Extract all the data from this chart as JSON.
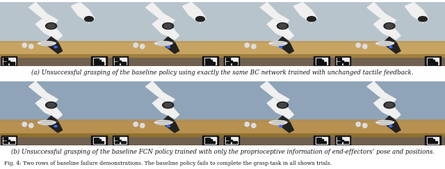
{
  "figsize": [
    6.4,
    2.43
  ],
  "dpi": 100,
  "bg_color": "#ffffff",
  "row1_caption": "(a) Unsuccessful grasping of the baseline policy using exactly the same BC network trained with unchanged tactile feedback.",
  "row2_caption": "(b) Unsuccessful grasping of the baseline FCN policy trained with only the proprioceptive information of end-effectors’ pose and positions.",
  "fig_caption": "Fig. 4: Two rows of baseline failure demonstrations. The baseline policy fails to complete the grasp task in all shown trials.",
  "caption_fontsize": 6.2,
  "fig_caption_fontsize": 5.5,
  "n_imgs": 4,
  "row1_bg_wall": "#b0bec5",
  "row1_bg_table": "#c8a870",
  "row2_bg_wall": "#90a4b0",
  "row2_bg_table": "#b89a60",
  "robot_white": "#f0f0f0",
  "robot_dark": "#222222",
  "aruco_bg": "#111111",
  "aruco_white": "#eeeeee"
}
